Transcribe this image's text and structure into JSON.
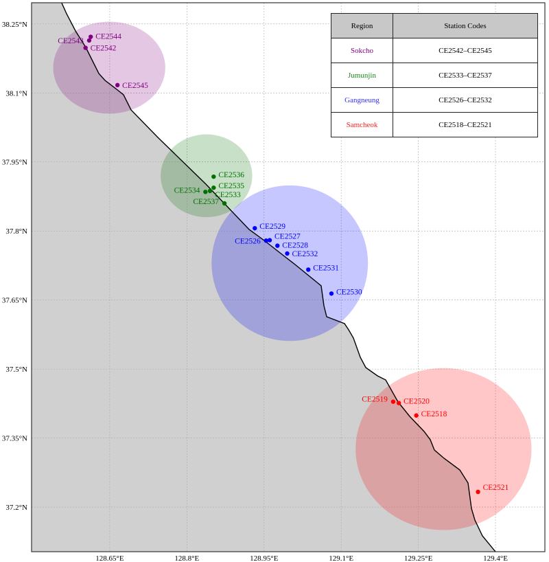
{
  "map": {
    "extent": {
      "lon": [
        128.498,
        129.496
      ],
      "lat": [
        37.103,
        38.296
      ]
    },
    "x_ticks": [
      {
        "value": 128.65,
        "label": "128.65°E"
      },
      {
        "value": 128.8,
        "label": "128.8°E"
      },
      {
        "value": 128.95,
        "label": "128.95°E"
      },
      {
        "value": 129.1,
        "label": "129.1°E"
      },
      {
        "value": 129.25,
        "label": "129.25°E"
      },
      {
        "value": 129.4,
        "label": "129.4°E"
      }
    ],
    "y_ticks": [
      {
        "value": 38.25,
        "label": "38.25°N"
      },
      {
        "value": 38.1,
        "label": "38.1°N"
      },
      {
        "value": 37.95,
        "label": "37.95°N"
      },
      {
        "value": 37.8,
        "label": "37.8°N"
      },
      {
        "value": 37.65,
        "label": "37.65°N"
      },
      {
        "value": 37.5,
        "label": "37.5°N"
      },
      {
        "value": 37.35,
        "label": "37.35°N"
      },
      {
        "value": 37.2,
        "label": "37.2°N"
      }
    ],
    "grid": true,
    "land_color": "#d0d0d0",
    "coastline_color": "#000000",
    "regions": [
      {
        "name": "Sokcho",
        "color": "#800080",
        "codes": "CE2542–CE2545",
        "center": [
          128.649,
          38.155
        ],
        "radius_deg": [
          0.109,
          0.1
        ]
      },
      {
        "name": "Jumunjin",
        "color": "#007000",
        "codes": "CE2533–CE2537",
        "center": [
          128.838,
          37.92
        ],
        "radius_deg": [
          0.089,
          0.09
        ]
      },
      {
        "name": "Gangneung",
        "color": "#0000ff",
        "codes": "CE2526–CE2532",
        "center": [
          129.0,
          37.73
        ],
        "radius_deg": [
          0.152,
          0.169
        ]
      },
      {
        "name": "Samcheok",
        "color": "#ff0000",
        "codes": "CE2518–CE2521",
        "center": [
          129.299,
          37.326
        ],
        "radius_deg": [
          0.171,
          0.176
        ]
      }
    ],
    "stations": [
      {
        "code": "CE2544",
        "region": 0,
        "lon": 128.613,
        "lat": 38.222
      },
      {
        "code": "CE2543",
        "region": 0,
        "lon": 128.61,
        "lat": 38.214
      },
      {
        "code": "CE2542",
        "region": 0,
        "lon": 128.603,
        "lat": 38.198
      },
      {
        "code": "CE2545",
        "region": 0,
        "lon": 128.665,
        "lat": 38.117
      },
      {
        "code": "CE2536",
        "region": 1,
        "lon": 128.852,
        "lat": 37.918
      },
      {
        "code": "CE2535",
        "region": 1,
        "lon": 128.852,
        "lat": 37.894
      },
      {
        "code": "CE2534",
        "region": 1,
        "lon": 128.836,
        "lat": 37.885
      },
      {
        "code": "CE2533",
        "region": 1,
        "lon": 128.845,
        "lat": 37.887
      },
      {
        "code": "CE2537",
        "region": 1,
        "lon": 128.873,
        "lat": 37.86
      },
      {
        "code": "CE2529",
        "region": 2,
        "lon": 128.932,
        "lat": 37.806
      },
      {
        "code": "CE2527",
        "region": 2,
        "lon": 128.961,
        "lat": 37.78
      },
      {
        "code": "CE2526",
        "region": 2,
        "lon": 128.954,
        "lat": 37.779
      },
      {
        "code": "CE2528",
        "region": 2,
        "lon": 128.976,
        "lat": 37.768
      },
      {
        "code": "CE2532",
        "region": 2,
        "lon": 128.995,
        "lat": 37.751
      },
      {
        "code": "CE2531",
        "region": 2,
        "lon": 129.036,
        "lat": 37.716
      },
      {
        "code": "CE2530",
        "region": 2,
        "lon": 129.081,
        "lat": 37.664
      },
      {
        "code": "CE2519",
        "region": 3,
        "lon": 129.201,
        "lat": 37.429
      },
      {
        "code": "CE2520",
        "region": 3,
        "lon": 129.212,
        "lat": 37.426
      },
      {
        "code": "CE2518",
        "region": 3,
        "lon": 129.246,
        "lat": 37.399
      },
      {
        "code": "CE2521",
        "region": 3,
        "lon": 129.366,
        "lat": 37.233
      }
    ]
  },
  "legend_table": {
    "headers": [
      "Region",
      "Station Codes"
    ],
    "rows": [
      {
        "region": "Sokcho",
        "codes": "CE2542–CE2545",
        "color": "#800080"
      },
      {
        "region": "Jumunjin",
        "codes": "CE2533–CE2537",
        "color": "#1a8a1a"
      },
      {
        "region": "Gangneung",
        "codes": "CE2526–CE2532",
        "color": "#3333ff"
      },
      {
        "region": "Samcheok",
        "codes": "CE2518–CE2521",
        "color": "#ff2020"
      }
    ]
  }
}
